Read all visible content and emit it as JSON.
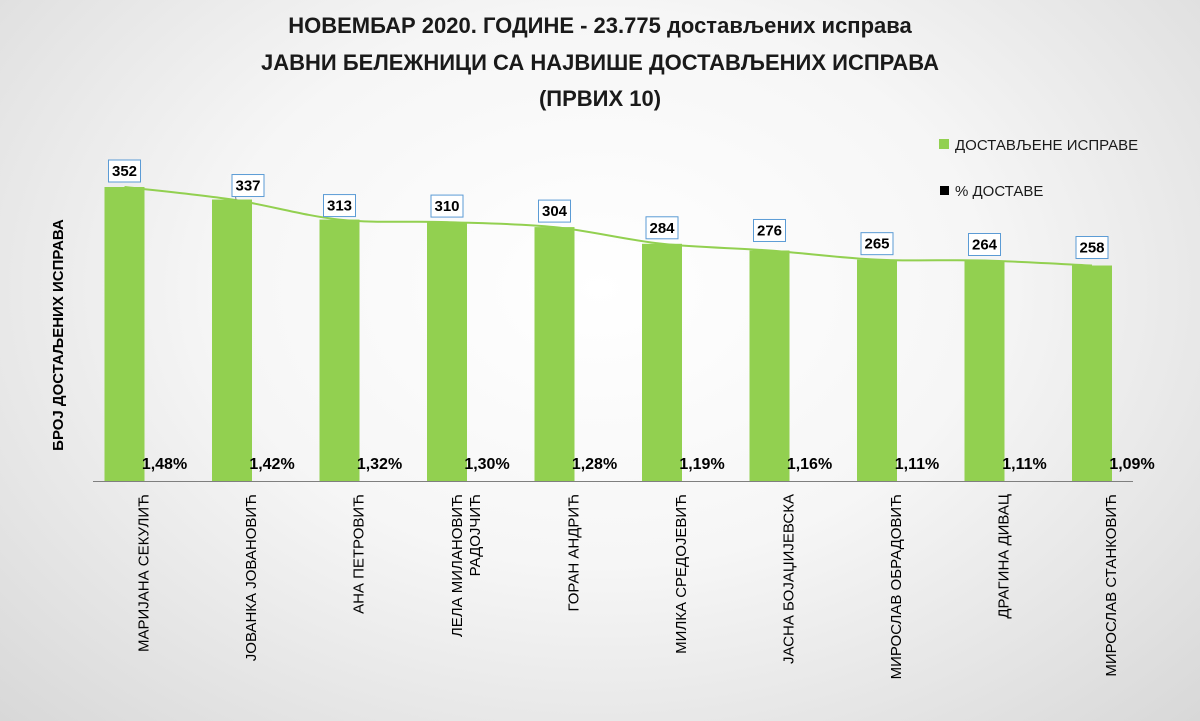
{
  "chart_data": {
    "type": "bar",
    "title_lines": [
      "НОВЕМБАР 2020. ГОДИНЕ - 23.775 достављених исправа",
      "ЈАВНИ БЕЛЕЖНИЦИ СА НАЈВИШЕ ДОСТАВЉЕНИХ ИСПРАВА",
      "(ПРВИХ 10)"
    ],
    "ylabel": "БРОЈ ДОСТАЉЕНИХ ИСПРАВА",
    "ylim": [
      0,
      400
    ],
    "grid": false,
    "legend_position": "top-right",
    "categories": [
      [
        "МАРИЈАНА СЕКУЛИЋ"
      ],
      [
        "ЈОВАНКА ЈОВАНОВИЋ"
      ],
      [
        "АНА ПЕТРОВИЋ"
      ],
      [
        "ЛЕЛА МИЛАНОВИЋ",
        "РАДОЈЧИЋ"
      ],
      [
        "ГОРАН АНДРИЋ"
      ],
      [
        "МИЛКА СРЕДОЈЕВИЋ"
      ],
      [
        "ЈАСНА БОЈАЏИЈЕВСКА"
      ],
      [
        "МИРОСЛАВ ОБРАДОВИЋ"
      ],
      [
        "ДРАГИНА ДИВАЦ"
      ],
      [
        "МИРОСЛАВ СТАНКОВИЋ"
      ]
    ],
    "series": [
      {
        "name": "ДОСТАВЉЕНЕ ИСПРАВЕ",
        "color": "#92d050",
        "values": [
          352,
          337,
          313,
          310,
          304,
          284,
          276,
          265,
          264,
          258
        ],
        "labels": [
          "352",
          "337",
          "313",
          "310",
          "304",
          "284",
          "276",
          "265",
          "264",
          "258"
        ]
      },
      {
        "name": "% ДОСТАВЕ",
        "color": "#000000",
        "values": [
          1.48,
          1.42,
          1.32,
          1.3,
          1.28,
          1.19,
          1.16,
          1.11,
          1.11,
          1.09
        ],
        "labels": [
          "1,48%",
          "1,42%",
          "1,32%",
          "1,30%",
          "1,28%",
          "1,19%",
          "1,16%",
          "1,11%",
          "1,11%",
          "1,09%"
        ]
      }
    ],
    "trendline_color": "#92d050",
    "label_box_border_color": "#5b9bd5"
  }
}
